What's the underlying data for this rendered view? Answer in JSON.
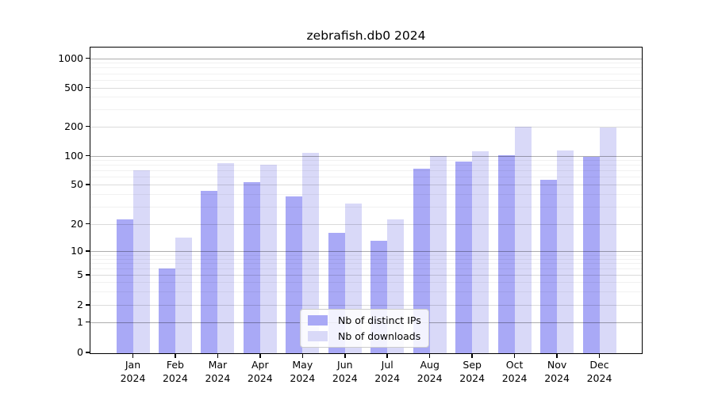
{
  "chart_data": {
    "type": "bar",
    "title": "zebrafish.db0 2024",
    "categories": [
      "Jan",
      "Feb",
      "Mar",
      "Apr",
      "May",
      "Jun",
      "Jul",
      "Aug",
      "Sep",
      "Oct",
      "Nov",
      "Dec"
    ],
    "xtick_year": "2024",
    "series": [
      {
        "name": "Nb of distinct IPs",
        "color": "#a9a9f6",
        "values": [
          22,
          6,
          43,
          53,
          38,
          16,
          13,
          73,
          86,
          101,
          56,
          97
        ]
      },
      {
        "name": "Nb of downloads",
        "color": "#d9d9f8",
        "values": [
          70,
          14,
          84,
          80,
          106,
          32,
          22,
          100,
          112,
          200,
          114,
          194
        ]
      }
    ],
    "yticks": [
      0,
      1,
      2,
      5,
      10,
      20,
      50,
      100,
      200,
      500,
      1000
    ],
    "ylim": [
      0,
      1300
    ],
    "scale": "symlog",
    "grid": true,
    "legend": {
      "position": "inside-bottom-center",
      "items": [
        "Nb of distinct IPs",
        "Nb of downloads"
      ]
    }
  }
}
